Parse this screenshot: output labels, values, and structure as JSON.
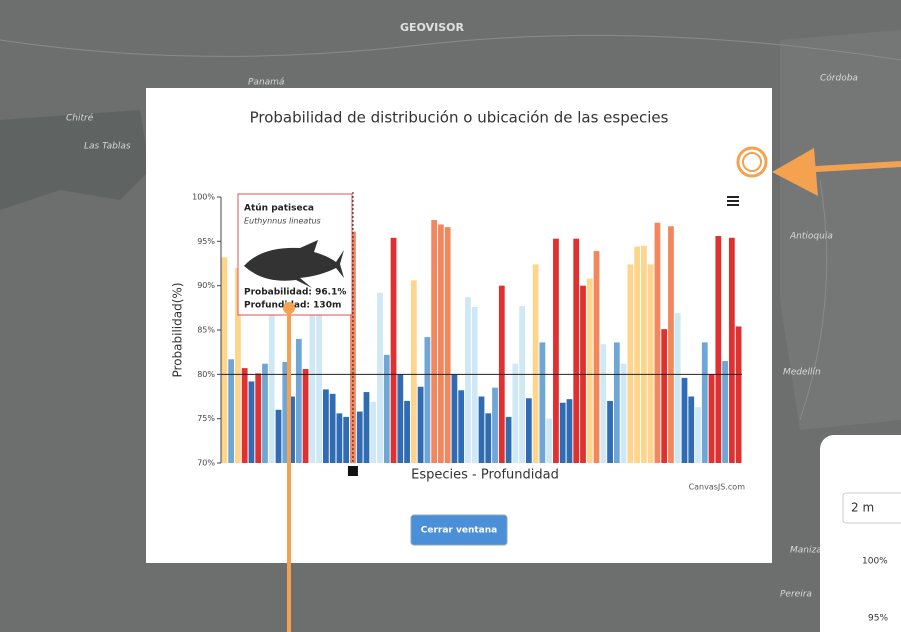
{
  "header": {
    "logo": "GEOVISOR"
  },
  "map_labels": [
    "Panamá",
    "Chitré",
    "Las Tablas",
    "Córdoba",
    "Antioquia",
    "Medellín",
    "Manizales",
    "Pereira"
  ],
  "modal": {
    "close_button": "Cerrar ventana"
  },
  "side_panel": {
    "depth": "2 m",
    "ticks": [
      "100%",
      "95%"
    ]
  },
  "chart_data": {
    "type": "bar",
    "title": "Probabilidad de distribución o ubicación de las especies",
    "y_label": "Probabilidad(%)",
    "x_label": "Especies - Profundidad",
    "credit": "CanvasJS.com",
    "ylim": [
      70,
      100
    ],
    "yticks": [
      {
        "value": 70,
        "label": "70%"
      },
      {
        "value": 75,
        "label": "75%"
      },
      {
        "value": 80,
        "label": "80%"
      },
      {
        "value": 85,
        "label": "85%"
      },
      {
        "value": 90,
        "label": "90%"
      },
      {
        "value": 95,
        "label": "95%"
      },
      {
        "value": 100,
        "label": "100%"
      }
    ],
    "reference_line": 80,
    "active_bar": 19,
    "values": [
      93.2,
      81.7,
      92.0,
      80.7,
      79.2,
      80.1,
      81.2,
      88,
      76,
      81.4,
      77.5,
      84,
      80.6,
      93,
      95,
      78.3,
      77.8,
      75.6,
      75.2,
      96.1,
      75.8,
      78,
      76.9,
      89.2,
      82.2,
      95.4,
      80,
      77,
      90.6,
      78.6,
      84.2,
      97.4,
      96.9,
      96.6,
      80,
      78.2,
      88.7,
      87.6,
      77.5,
      75.6,
      78.5,
      90,
      75.2,
      81.2,
      87.7,
      77.3,
      92.4,
      83.6,
      75,
      95.3,
      76.8,
      77.2,
      95.3,
      90,
      90.8,
      93.9,
      83.4,
      77,
      83.6,
      81.2,
      92.4,
      94.4,
      94.5,
      92.4,
      97.1,
      85.1,
      96.7,
      86.9,
      79.6,
      77.5,
      76.3,
      83.6,
      80,
      95.6,
      81.5,
      95.4,
      85.4
    ],
    "colors": [
      "#fdd58c",
      "#6ea6d6",
      "#fdd58c",
      "#e0302f",
      "#2f6cb3",
      "#e0302f",
      "#6ea6d6",
      "#cfe8f5",
      "#2f6cb3",
      "#6ea6d6",
      "#2f6cb3",
      "#6ea6d6",
      "#e0302f",
      "#cfe8f5",
      "#cfe8f5",
      "#2f6cb3",
      "#2f6cb3",
      "#2f6cb3",
      "#2f6cb3",
      "#f2875e",
      "#2f6cb3",
      "#2f6cb3",
      "#cfe8f5",
      "#cfe8f5",
      "#6ea6d6",
      "#e0302f",
      "#2f6cb3",
      "#2f6cb3",
      "#fdd58c",
      "#2f6cb3",
      "#6ea6d6",
      "#f2875e",
      "#f2875e",
      "#f2875e",
      "#2f6cb3",
      "#2f6cb3",
      "#cfe8f5",
      "#cfe8f5",
      "#2f6cb3",
      "#2f6cb3",
      "#6ea6d6",
      "#e0302f",
      "#2f6cb3",
      "#cfe8f5",
      "#cfe8f5",
      "#2f6cb3",
      "#fdd58c",
      "#6ea6d6",
      "#cfe8f5",
      "#e0302f",
      "#2f6cb3",
      "#2f6cb3",
      "#e0302f",
      "#e0302f",
      "#fdd58c",
      "#f2875e",
      "#cfe8f5",
      "#2f6cb3",
      "#6ea6d6",
      "#cfe8f5",
      "#fdd58c",
      "#fdd58c",
      "#fdd58c",
      "#fdd58c",
      "#f2875e",
      "#e0302f",
      "#f2875e",
      "#cfe8f5",
      "#2f6cb3",
      "#2f6cb3",
      "#cfe8f5",
      "#6ea6d6",
      "#e0302f",
      "#e0302f",
      "#6ea6d6",
      "#e0302f",
      "#e0302f"
    ],
    "tooltip": {
      "name": "Atún patiseca",
      "scientific_name": "Euthynnus lineatus",
      "probability_label": "Probabilidad: 96.1%",
      "depth_label": "Profundidad: 130m"
    }
  }
}
